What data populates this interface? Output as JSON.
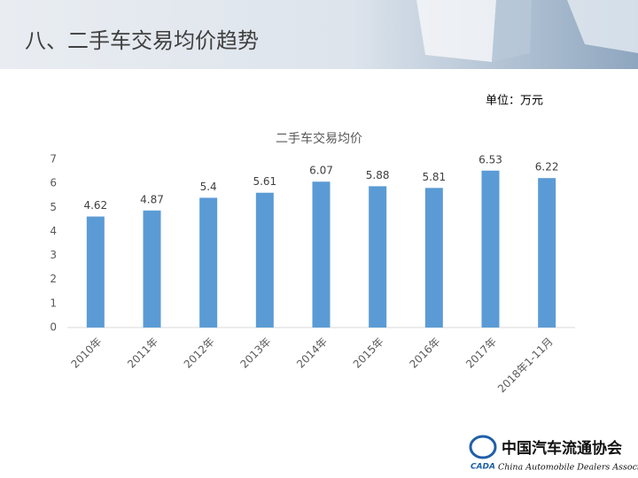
{
  "header": {
    "title": "八、二手车交易均价趋势"
  },
  "unit": "单位：万元",
  "chart_data": {
    "type": "bar",
    "title": "二手车交易均价",
    "categories": [
      "2010年",
      "2011年",
      "2012年",
      "2013年",
      "2014年",
      "2015年",
      "2016年",
      "2017年",
      "2018年1-11月"
    ],
    "values": [
      4.62,
      4.87,
      5.4,
      5.61,
      6.07,
      5.88,
      5.81,
      6.53,
      6.22
    ],
    "color": "#5b9bd5",
    "ylim": [
      0,
      7
    ],
    "yticks": [
      0,
      1,
      2,
      3,
      4,
      5,
      6,
      7
    ],
    "grid": false
  },
  "logo": {
    "mark": "CADA",
    "name": "中国汽车流通协会",
    "english": "China Automobile Dealers Association"
  }
}
